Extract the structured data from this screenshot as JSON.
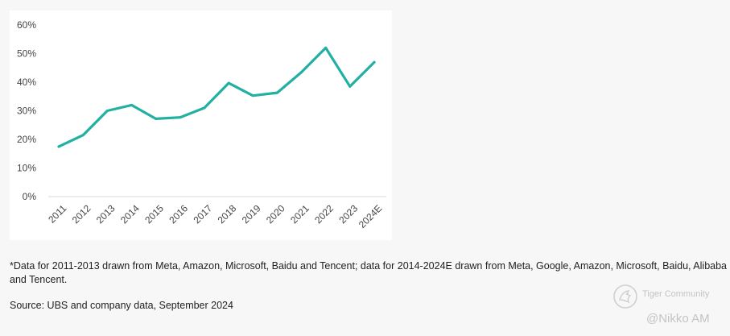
{
  "chart_data": {
    "type": "line",
    "title": "",
    "xlabel": "",
    "ylabel": "",
    "categories": [
      "2011",
      "2012",
      "2013",
      "2014",
      "2015",
      "2016",
      "2017",
      "2018",
      "2019",
      "2020",
      "2021",
      "2022",
      "2023",
      "2024E"
    ],
    "series": [
      {
        "name": "",
        "color": "#22b0a3",
        "values": [
          17.5,
          21.5,
          30,
          32,
          27.2,
          27.7,
          31,
          39.7,
          35.3,
          36.3,
          43.5,
          52,
          38.5,
          47
        ]
      }
    ],
    "ylim": [
      0,
      60
    ],
    "yticks": [
      0,
      10,
      20,
      30,
      40,
      50,
      60
    ],
    "ytick_labels": [
      "0%",
      "10%",
      "20%",
      "30%",
      "40%",
      "50%",
      "60%"
    ],
    "grid": false
  },
  "footnote": "*Data for 2011-2013 drawn from Meta, Amazon, Microsoft, Baidu and Tencent; data for 2014-2024E drawn from Meta, Google, Amazon, Microsoft, Baidu, Alibaba and Tencent.",
  "source": "Source: UBS and company data, September 2024",
  "watermark": {
    "brand": "Tiger Community",
    "handle": "@Nikko AM"
  }
}
